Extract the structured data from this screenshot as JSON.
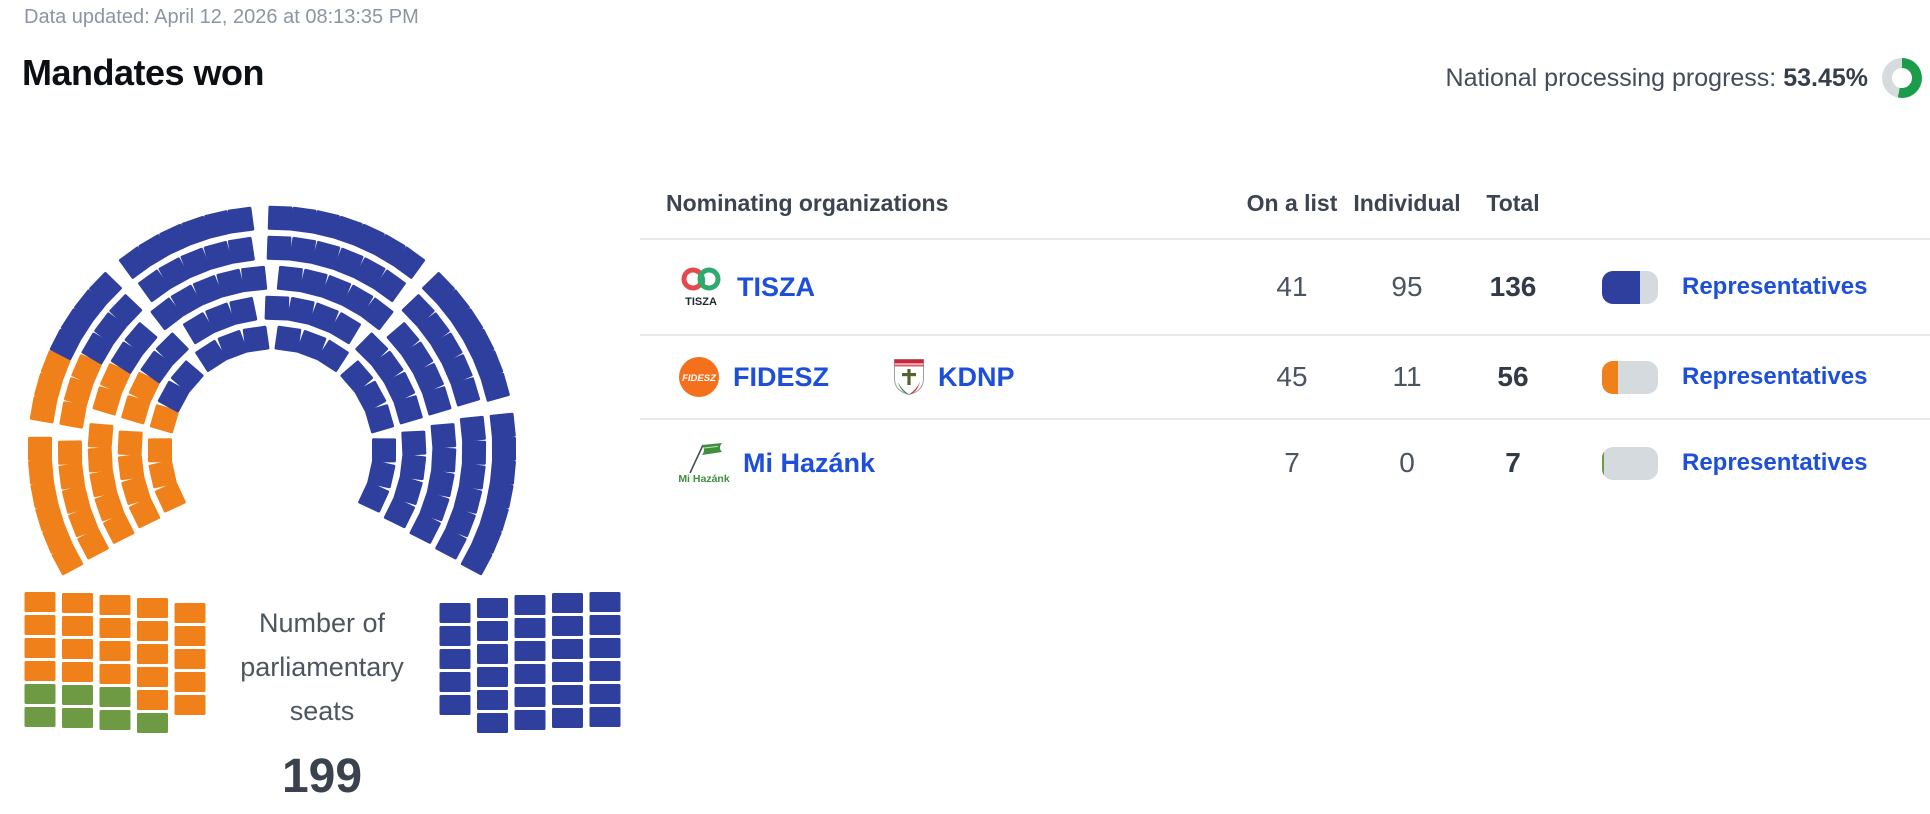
{
  "header": {
    "data_updated": "Data updated: April 12, 2026 at 08:13:35 PM",
    "title": "Mandates won",
    "progress_label": "National processing progress:",
    "progress_value": "53.45%",
    "progress_percent": 53.45,
    "progress_color": "#1b9c4b",
    "progress_track_color": "#d6dbde"
  },
  "chart_data": {
    "type": "pie",
    "variant": "parliament-hemicycle-seat-chart",
    "title": "Number of parliamentary seats",
    "center_label_lines": [
      "Number of",
      "parliamentary",
      "seats"
    ],
    "total_seats": 199,
    "total_seats_label": "199",
    "legend_position": "none",
    "series": [
      {
        "name": "TISZA",
        "seats": 136,
        "color": "#2e3f9e"
      },
      {
        "name": "FIDESZ-KDNP",
        "seats": 56,
        "color": "#f0801a"
      },
      {
        "name": "Mi Hazánk",
        "seats": 7,
        "color": "#6f9a44"
      }
    ]
  },
  "table": {
    "headers": {
      "org": "Nominating organizations",
      "on_list": "On a list",
      "individual": "Individual",
      "total": "Total"
    },
    "rows": [
      {
        "on_list": 41,
        "individual": 95,
        "total": 136,
        "color": "#2e3f9e",
        "link": "Representatives",
        "parties": [
          {
            "name": "TISZA"
          }
        ]
      },
      {
        "on_list": 45,
        "individual": 11,
        "total": 56,
        "color": "#f0801a",
        "link": "Representatives",
        "parties": [
          {
            "name": "FIDESZ"
          },
          {
            "name": "KDNP"
          }
        ]
      },
      {
        "on_list": 7,
        "individual": 0,
        "total": 7,
        "color": "#6f9a44",
        "link": "Representatives",
        "parties": [
          {
            "name": "Mi Hazánk"
          }
        ]
      }
    ]
  },
  "logos": {
    "tisza_caption": "TISZA",
    "fidesz_text": "FIDESZ",
    "mihazank_caption": "Mi Hazánk",
    "tisza_red": "#e5484d",
    "tisza_green": "#2fa96c",
    "fidesz_orange": "#f4701d",
    "kdnp_red": "#c8293a",
    "kdnp_green": "#3f7d3c",
    "mihazank_green": "#3f8f3d"
  }
}
